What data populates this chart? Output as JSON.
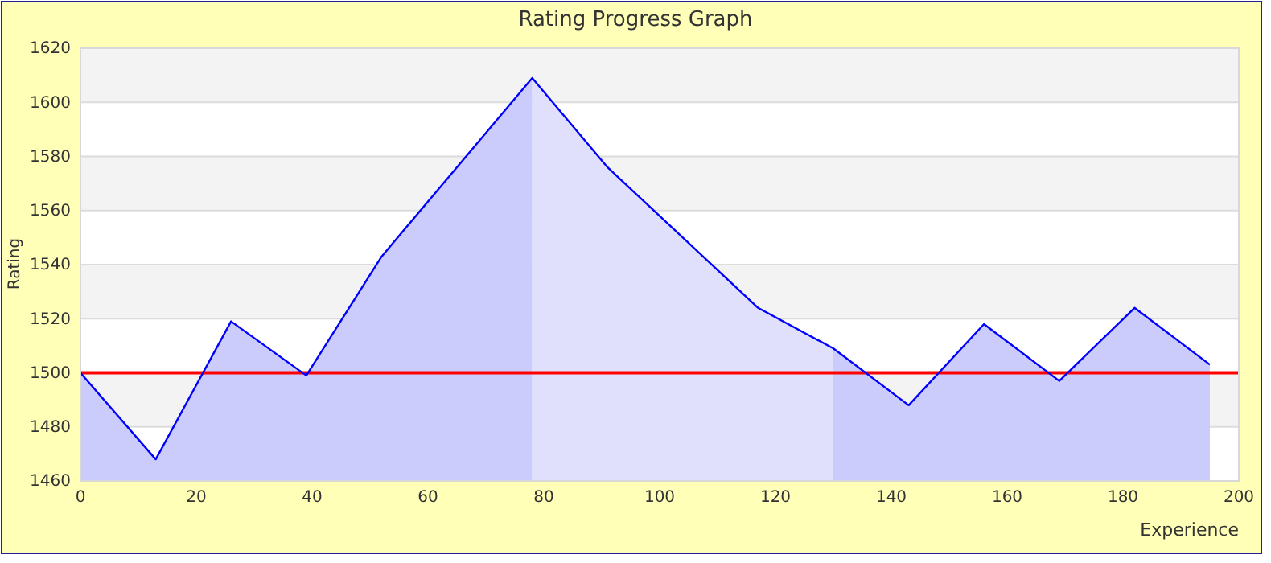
{
  "chart_data": {
    "type": "line",
    "title": "Rating Progress Graph",
    "xlabel": "Experience",
    "ylabel": "Rating",
    "xlim": [
      0,
      200
    ],
    "xticks": [
      0,
      20,
      40,
      60,
      80,
      100,
      120,
      140,
      160,
      180,
      200
    ],
    "ylim": [
      1460,
      1620
    ],
    "yticks": [
      1460,
      1480,
      1500,
      1520,
      1540,
      1560,
      1580,
      1600,
      1620
    ],
    "grid": "y",
    "marker": "none",
    "line_style": "solid",
    "ref_lines": [
      {
        "axis": "y",
        "value": 1500,
        "color": "#ff0000"
      }
    ],
    "series": [
      {
        "type": "area",
        "color": "#ccccfc",
        "x": [
          0,
          13,
          26,
          39,
          52,
          65,
          78
        ],
        "values": [
          1500,
          1468,
          1519,
          1499,
          1543,
          1576,
          1609
        ]
      },
      {
        "type": "area",
        "color": "#e0e0fc",
        "x": [
          78,
          91,
          104,
          117,
          130
        ],
        "values": [
          1609,
          1576,
          1550,
          1524,
          1509
        ]
      },
      {
        "type": "area",
        "color": "#ccccfc",
        "x": [
          130,
          143,
          156,
          169,
          182,
          195
        ],
        "values": [
          1509,
          1488,
          1518,
          1497,
          1524,
          1503
        ]
      },
      {
        "type": "line",
        "color": "#0000ff",
        "x": [
          0,
          13,
          26,
          39,
          52,
          65,
          78,
          91,
          104,
          117,
          130,
          143,
          156,
          169,
          182,
          195
        ],
        "values": [
          1500,
          1468,
          1519,
          1499,
          1543,
          1576,
          1609,
          1576,
          1550,
          1524,
          1509,
          1488,
          1518,
          1497,
          1524,
          1503
        ]
      }
    ]
  }
}
